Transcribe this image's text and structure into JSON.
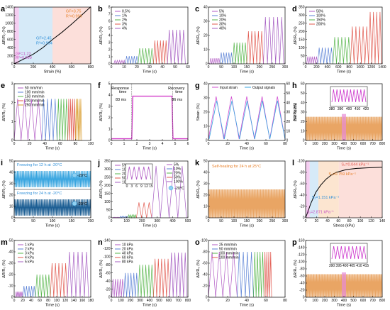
{
  "chart_data": [
    {
      "id": "a",
      "type": "line",
      "xlabel": "Strain (%)",
      "ylabel": "ΔR/R₀ (%)",
      "xlim": [
        0,
        800
      ],
      "ylim": [
        0,
        1400
      ],
      "xticks": [
        "0",
        "200",
        "400",
        "600",
        "800"
      ],
      "yticks": [
        "0",
        "200",
        "400",
        "600",
        "800",
        "1000",
        "1200",
        "1400"
      ],
      "regions": [
        {
          "x0": 0,
          "x1": 50,
          "color": "#f3c6ee"
        },
        {
          "x0": 50,
          "x1": 400,
          "color": "#cfe6f7"
        },
        {
          "x0": 400,
          "x1": 800,
          "color": "#fbd9d3"
        }
      ],
      "curve": {
        "x": [
          0,
          50,
          100,
          200,
          300,
          400,
          500,
          600,
          700,
          800
        ],
        "y": [
          0,
          60,
          120,
          240,
          400,
          600,
          780,
          980,
          1190,
          1410
        ]
      },
      "annotations": [
        {
          "text": "GF=1.22",
          "x": 15,
          "y": 220,
          "color": "#c44fc0"
        },
        {
          "text": "R²=0.999",
          "x": 15,
          "y": 120,
          "color": "#c44fc0"
        },
        {
          "text": "GF=2.45",
          "x": 230,
          "y": 600,
          "color": "#2f8fd8"
        },
        {
          "text": "R²=0.994",
          "x": 230,
          "y": 480,
          "color": "#2f8fd8"
        },
        {
          "text": "GF=3.75",
          "x": 540,
          "y": 1270,
          "color": "#e8812b"
        },
        {
          "text": "R²=0.999",
          "x": 540,
          "y": 1150,
          "color": "#e8812b"
        }
      ]
    },
    {
      "id": "b",
      "type": "line",
      "xlabel": "Time (s)",
      "ylabel": "ΔR/R₀ (%)",
      "xlim": [
        0,
        60
      ],
      "ylim": [
        0,
        8
      ],
      "xticks": [
        "0",
        "10",
        "20",
        "30",
        "40",
        "50",
        "60"
      ],
      "yticks": [
        "0",
        "1",
        "2",
        "3",
        "4",
        "5",
        "6",
        "7",
        "8"
      ],
      "series": [
        {
          "name": "0.5%",
          "color": "#b15ac4",
          "amp": 0.5,
          "t0": 2,
          "t1": 11,
          "n": 5
        },
        {
          "name": "1%",
          "color": "#5b82d6",
          "amp": 1.1,
          "t0": 11,
          "t1": 21,
          "n": 5
        },
        {
          "name": "2%",
          "color": "#57b64b",
          "amp": 2.2,
          "t0": 21,
          "t1": 33,
          "n": 5
        },
        {
          "name": "3%",
          "color": "#e1584e",
          "amp": 3.3,
          "t0": 33,
          "t1": 44,
          "n": 5
        },
        {
          "name": "4%",
          "color": "#a55cc2",
          "amp": 4.8,
          "t0": 44,
          "t1": 58,
          "n": 5
        }
      ]
    },
    {
      "id": "c",
      "type": "line",
      "xlabel": "Time (s)",
      "ylabel": "ΔR/R₀ (%)",
      "xlim": [
        0,
        300
      ],
      "ylim": [
        0,
        40
      ],
      "xticks": [
        "0",
        "50",
        "100",
        "150",
        "200",
        "250",
        "300"
      ],
      "yticks": [
        "0",
        "10",
        "20",
        "30",
        "40"
      ],
      "series": [
        {
          "name": "5%",
          "color": "#b15ac4",
          "amp": 4,
          "t0": 5,
          "t1": 45,
          "n": 5
        },
        {
          "name": "10%",
          "color": "#5b82d6",
          "amp": 8,
          "t0": 45,
          "t1": 95,
          "n": 5
        },
        {
          "name": "20%",
          "color": "#57b64b",
          "amp": 15,
          "t0": 95,
          "t1": 150,
          "n": 5
        },
        {
          "name": "30%",
          "color": "#e1584e",
          "amp": 23,
          "t0": 150,
          "t1": 215,
          "n": 5
        },
        {
          "name": "40%",
          "color": "#a55cc2",
          "amp": 33,
          "t0": 215,
          "t1": 295,
          "n": 5
        }
      ]
    },
    {
      "id": "d",
      "type": "line",
      "xlabel": "Time (s)",
      "ylabel": "ΔR/R₀ (%)",
      "xlim": [
        0,
        1400
      ],
      "ylim": [
        0,
        350
      ],
      "xticks": [
        "0",
        "200",
        "400",
        "600",
        "800",
        "1000",
        "1200",
        "1400"
      ],
      "yticks": [
        "0",
        "50",
        "100",
        "150",
        "200",
        "250",
        "300",
        "350"
      ],
      "series": [
        {
          "name": "50%",
          "color": "#b15ac4",
          "amp": 45,
          "t0": 20,
          "t1": 220,
          "n": 5
        },
        {
          "name": "100%",
          "color": "#5b82d6",
          "amp": 100,
          "t0": 220,
          "t1": 500,
          "n": 5
        },
        {
          "name": "150%",
          "color": "#57b64b",
          "amp": 165,
          "t0": 500,
          "t1": 820,
          "n": 5
        },
        {
          "name": "200%",
          "color": "#e1584e",
          "amp": 230,
          "t0": 820,
          "t1": 1150,
          "n": 5
        },
        {
          "name": "",
          "color": "#e1584e",
          "amp": 320,
          "t0": 1150,
          "t1": 1390,
          "n": 4
        }
      ]
    },
    {
      "id": "e",
      "type": "line",
      "xlabel": "Time (s)",
      "ylabel": "ΔR/R₀ (%)",
      "xlim": [
        0,
        100
      ],
      "ylim": [
        0,
        3
      ],
      "xticks": [
        "0",
        "20",
        "40",
        "60",
        "80",
        "100"
      ],
      "yticks": [
        "0",
        "1",
        "2",
        "3"
      ],
      "series": [
        {
          "name": "50 mm/min",
          "color": "#b15ac4",
          "amp": 2.2,
          "t0": 0,
          "t1": 36,
          "n": 4
        },
        {
          "name": "100 mm/min",
          "color": "#5b82d6",
          "amp": 2.2,
          "t0": 36,
          "t1": 56,
          "n": 4
        },
        {
          "name": "150 mm/min",
          "color": "#57b64b",
          "amp": 2.2,
          "t0": 56,
          "t1": 70,
          "n": 4
        },
        {
          "name": "200 mm/min",
          "color": "#e1584e",
          "amp": 2.2,
          "t0": 70,
          "t1": 80,
          "n": 4
        },
        {
          "name": "250 mm/min",
          "color": "#d99c2b",
          "amp": 2.2,
          "t0": 80,
          "t1": 88,
          "n": 4
        }
      ]
    },
    {
      "id": "f",
      "type": "line",
      "xlabel": "Time (s)",
      "ylabel": "ΔR/R₀ (%)",
      "xlim": [
        0,
        6
      ],
      "ylim": [
        0,
        5
      ],
      "xticks": [
        "0",
        "1",
        "2",
        "3",
        "4",
        "5",
        "6"
      ],
      "yticks": [
        "0",
        "1",
        "2",
        "3",
        "4",
        "5"
      ],
      "signal": {
        "x": [
          0,
          1.6,
          1.68,
          4.75,
          4.83,
          6
        ],
        "y": [
          0.15,
          0.15,
          3.9,
          3.9,
          0.15,
          0.15
        ],
        "color": "#d23dc9"
      },
      "annotations": [
        {
          "text": "Response",
          "x": 0.7,
          "y": 4.5
        },
        {
          "text": "time",
          "x": 0.9,
          "y": 4.2
        },
        {
          "text": "83 ms",
          "x": 0.75,
          "y": 3.5
        },
        {
          "text": "Recovery",
          "x": 5.1,
          "y": 4.5
        },
        {
          "text": "time",
          "x": 5.3,
          "y": 4.2
        },
        {
          "text": "86 ms",
          "x": 5.15,
          "y": 3.5
        }
      ]
    },
    {
      "id": "g",
      "type": "line",
      "xlabel": "Time (s)",
      "ylabel": "Strain (%)",
      "ylabel2": "ΔR/R₀ (%)",
      "xlim": [
        0,
        90
      ],
      "ylim": [
        0,
        40
      ],
      "ylim2": [
        0,
        60
      ],
      "xticks": [
        "0",
        "20",
        "40",
        "60",
        "80"
      ],
      "yticks": [
        "0",
        "10",
        "20",
        "30",
        "40"
      ],
      "yticks2": [
        "0",
        "10",
        "20",
        "30",
        "40",
        "50",
        "60"
      ],
      "series": [
        {
          "name": "Input strain",
          "color": "#d14fd1",
          "amp": 30,
          "t0": 0,
          "t1": 90,
          "n": 5
        },
        {
          "name": "Output signals",
          "color": "#3aa6e0",
          "amp": 27,
          "t0": 0,
          "t1": 90,
          "n": 5
        }
      ]
    },
    {
      "id": "h",
      "type": "line",
      "xlabel": "Time (s)",
      "ylabel": "ΔR/R₀ (%)",
      "xlim": [
        0,
        800
      ],
      "ylim": [
        0,
        60
      ],
      "xticks": [
        "0",
        "100",
        "200",
        "300",
        "400",
        "500",
        "600",
        "700",
        "800"
      ],
      "yticks": [
        "0",
        "10",
        "20",
        "30",
        "40",
        "50",
        "60"
      ],
      "band": {
        "color": "#e9a564",
        "amp": 25
      },
      "inset": {
        "xticks": [
          "380",
          "390",
          "400",
          "410",
          "420"
        ],
        "color": "#cc33cc",
        "n": 10
      }
    },
    {
      "id": "i",
      "type": "line",
      "xlabel": "Time (s)",
      "ylabel": "ΔR/R₀ (%)",
      "xlim": [
        0,
        200
      ],
      "ylim": [
        0,
        50
      ],
      "xticks": [
        "0",
        "50",
        "100",
        "150",
        "200"
      ],
      "yticks": [
        "0",
        "10",
        "20",
        "30",
        "40",
        "50"
      ],
      "panels": [
        {
          "label": "Freezing for 12 h at -20°C",
          "color": "#3aa6e0",
          "temp": "-20°C"
        },
        {
          "label": "Freezing for 24 h at -20°C",
          "color": "#1d5f94",
          "temp": "-20°C"
        }
      ]
    },
    {
      "id": "j",
      "type": "line",
      "xlabel": "Time (s)",
      "ylabel": "ΔR/R₀ (%)",
      "xlim": [
        0,
        550
      ],
      "ylim": [
        0,
        350
      ],
      "xticks": [
        "0",
        "100",
        "200",
        "300",
        "400",
        "500"
      ],
      "yticks": [
        "0",
        "50",
        "100",
        "150",
        "200",
        "250",
        "300",
        "350"
      ],
      "series": [
        {
          "name": "5%",
          "color": "#b15ac4",
          "amp": 4,
          "t0": 10,
          "t1": 60,
          "n": 5
        },
        {
          "name": "10%",
          "color": "#5b82d6",
          "amp": 9,
          "t0": 60,
          "t1": 120,
          "n": 5
        },
        {
          "name": "20%",
          "color": "#57b64b",
          "amp": 18,
          "t0": 120,
          "t1": 180,
          "n": 5
        },
        {
          "name": "50%",
          "color": "#e1584e",
          "amp": 95,
          "t0": 180,
          "t1": 290,
          "n": 3
        },
        {
          "name": "100%",
          "color": "#a55cc2",
          "amp": 320,
          "t0": 290,
          "t1": 540,
          "n": 4
        }
      ],
      "inset": {
        "xticks": [
          "0",
          "3",
          "6",
          "9",
          "12",
          "15"
        ],
        "color": "#b15ac4"
      },
      "temp": "-20°C"
    },
    {
      "id": "k",
      "type": "line",
      "xlabel": "Time (s)",
      "ylabel": "ΔR/R₀ (%)",
      "xlim": [
        0,
        300
      ],
      "ylim": [
        0,
        50
      ],
      "xticks": [
        "0",
        "50",
        "100",
        "150",
        "200",
        "250",
        "300"
      ],
      "yticks": [
        "0",
        "10",
        "20",
        "30",
        "40",
        "50"
      ],
      "band": {
        "color": "#e9a564",
        "amp": 25
      },
      "label": "Self-healing for 24 h at 25°C"
    },
    {
      "id": "l",
      "type": "line",
      "xlabel": "Stress (kPa)",
      "ylabel": "ΔR/R₀ (%)",
      "xlim": [
        0,
        150
      ],
      "ylim": [
        0,
        -100
      ],
      "xticks": [
        "0",
        "20",
        "40",
        "60",
        "80",
        "100",
        "120",
        "140"
      ],
      "yticks": [
        "0",
        "-20",
        "-40",
        "-60",
        "-80",
        "-100"
      ],
      "regions": [
        {
          "x0": 0,
          "x1": 8,
          "color": "#f3c6ee"
        },
        {
          "x0": 8,
          "x1": 25,
          "color": "#cfe6f7"
        },
        {
          "x0": 25,
          "x1": 65,
          "color": "#fbe0c8"
        },
        {
          "x0": 65,
          "x1": 150,
          "color": "#fbd9d3"
        }
      ],
      "curve": {
        "x": [
          0,
          5,
          10,
          20,
          30,
          40,
          50,
          60,
          80,
          100,
          120,
          150
        ],
        "y": [
          0,
          -12,
          -25,
          -45,
          -58,
          -68,
          -75,
          -80,
          -85,
          -87,
          -88,
          -89
        ]
      },
      "annotations": [
        {
          "text": "S₁=2.871 kPa⁻¹",
          "x": 2,
          "y": -8,
          "color": "#c44fc0"
        },
        {
          "text": "S₂=1.151 kPa⁻¹",
          "x": 12,
          "y": -34,
          "color": "#2f8fd8"
        },
        {
          "text": "S₃=0.759 kPa⁻¹",
          "x": 45,
          "y": -75,
          "color": "#e8812b"
        },
        {
          "text": "S₄=0.044 kPa⁻¹",
          "x": 70,
          "y": -92,
          "color": "#e1584e"
        }
      ]
    },
    {
      "id": "m",
      "type": "line",
      "xlabel": "Time (s)",
      "ylabel": "ΔR/R₀ (%)",
      "xlim": [
        0,
        180
      ],
      "ylim": [
        0,
        -50
      ],
      "xticks": [
        "0",
        "20",
        "40",
        "60",
        "80",
        "100",
        "120",
        "140",
        "160",
        "180"
      ],
      "yticks": [
        "0",
        "-10",
        "-20",
        "-30",
        "-40",
        "-50"
      ],
      "series": [
        {
          "name": "1 kPa",
          "color": "#b15ac4",
          "amp": 5,
          "t0": 3,
          "t1": 20,
          "n": 5
        },
        {
          "name": "2 kPa",
          "color": "#5b82d6",
          "amp": 10,
          "t0": 20,
          "t1": 50,
          "n": 5
        },
        {
          "name": "3 kPa",
          "color": "#57b64b",
          "amp": 20,
          "t0": 50,
          "t1": 85,
          "n": 5
        },
        {
          "name": "4 kPa",
          "color": "#e1584e",
          "amp": 30,
          "t0": 85,
          "t1": 125,
          "n": 5
        },
        {
          "name": "5 kPa",
          "color": "#a55cc2",
          "amp": 40,
          "t0": 125,
          "t1": 175,
          "n": 5
        }
      ]
    },
    {
      "id": "n",
      "type": "line",
      "xlabel": "Time (s)",
      "ylabel": "ΔR/R₀ (%)",
      "xlim": [
        0,
        800
      ],
      "ylim": [
        0,
        -140
      ],
      "xticks": [
        "0",
        "100",
        "200",
        "300",
        "400",
        "500",
        "600",
        "700",
        "800"
      ],
      "yticks": [
        "0",
        "-20",
        "-40",
        "-60",
        "-80",
        "-100",
        "-120",
        "-140"
      ],
      "series": [
        {
          "name": "10 kPa",
          "color": "#b15ac4",
          "amp": 45,
          "t0": 5,
          "t1": 130,
          "n": 5
        },
        {
          "name": "20 kPa",
          "color": "#5b82d6",
          "amp": 60,
          "t0": 130,
          "t1": 280,
          "n": 5
        },
        {
          "name": "40 kPa",
          "color": "#57b64b",
          "amp": 80,
          "t0": 280,
          "t1": 440,
          "n": 5
        },
        {
          "name": "60 kPa",
          "color": "#e1584e",
          "amp": 95,
          "t0": 440,
          "t1": 610,
          "n": 5
        },
        {
          "name": "80 kPa",
          "color": "#a55cc2",
          "amp": 110,
          "t0": 610,
          "t1": 790,
          "n": 5
        }
      ]
    },
    {
      "id": "o",
      "type": "line",
      "xlabel": "Time (s)",
      "ylabel": "ΔR/R₀ (%)",
      "xlim": [
        0,
        80
      ],
      "ylim": [
        0,
        -100
      ],
      "xticks": [
        "0",
        "20",
        "40",
        "60",
        "80"
      ],
      "yticks": [
        "0",
        "-20",
        "-40",
        "-60",
        "-80",
        "-100"
      ],
      "series": [
        {
          "name": "25 mm/min",
          "color": "#b15ac4",
          "amp": 80,
          "t0": 0,
          "t1": 30,
          "n": 4
        },
        {
          "name": "50 mm/min",
          "color": "#5b82d6",
          "amp": 80,
          "t0": 30,
          "t1": 47,
          "n": 4
        },
        {
          "name": "100 mm/min",
          "color": "#57b64b",
          "amp": 80,
          "t0": 47,
          "t1": 58,
          "n": 4
        },
        {
          "name": "200 mm/min",
          "color": "#e1584e",
          "amp": 80,
          "t0": 58,
          "t1": 66,
          "n": 4
        }
      ]
    },
    {
      "id": "p",
      "type": "line",
      "xlabel": "Time (s)",
      "ylabel": "ΔR/R₀ (%)",
      "xlim": [
        0,
        800
      ],
      "ylim": [
        0,
        -160
      ],
      "xticks": [
        "0",
        "100",
        "200",
        "300",
        "400",
        "500",
        "600",
        "700",
        "800"
      ],
      "yticks": [
        "0",
        "-20",
        "-40",
        "-60",
        "-80",
        "-100",
        "-120",
        "-140",
        "-160"
      ],
      "band": {
        "color": "#e9a564",
        "amp": 65
      },
      "inset": {
        "xticks": [
          "390",
          "395",
          "400",
          "405",
          "410",
          "415"
        ],
        "color": "#cc33cc",
        "n": 9
      }
    }
  ]
}
